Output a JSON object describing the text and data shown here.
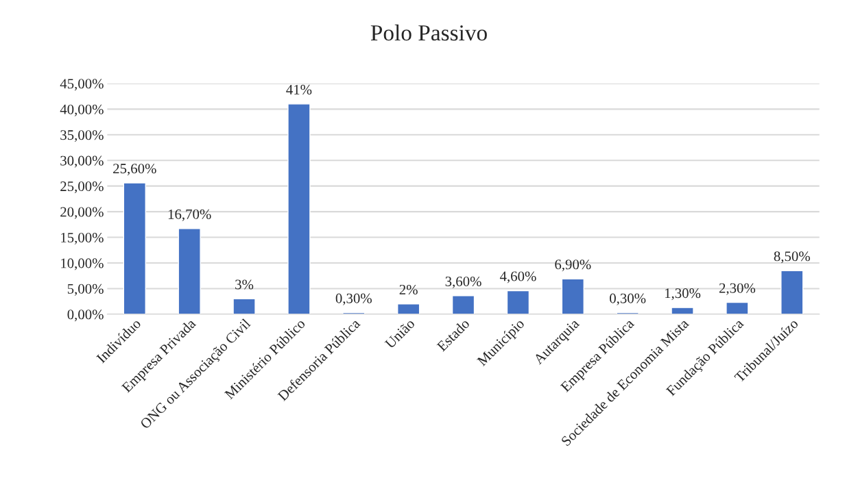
{
  "chart_data": {
    "type": "bar",
    "title": "Polo Passivo",
    "categories": [
      "Indivíduo",
      "Empresa Privada",
      "ONG ou Associação Civil",
      "Ministério Público",
      "Defensoria Pública",
      "União",
      "Estado",
      "Município",
      "Autarquia",
      "Empresa Pública",
      "Sociedade de Economia Mista",
      "Fundação Pública",
      "Tribunal/Juízo"
    ],
    "values": [
      25.6,
      16.7,
      3,
      41,
      0.3,
      2,
      3.6,
      4.6,
      6.9,
      0.3,
      1.3,
      2.3,
      8.5
    ],
    "value_labels": [
      "25,60%",
      "16,70%",
      "3%",
      "41%",
      "0,30%",
      "2%",
      "3,60%",
      "4,60%",
      "6,90%",
      "0,30%",
      "1,30%",
      "2,30%",
      "8,50%"
    ],
    "color": "#4472c4",
    "ylim": [
      0,
      45
    ],
    "yticks": [
      {
        "value": 0,
        "label": "0,00%"
      },
      {
        "value": 5,
        "label": "5,00%"
      },
      {
        "value": 10,
        "label": "10,00%"
      },
      {
        "value": 15,
        "label": "15,00%"
      },
      {
        "value": 20,
        "label": "20,00%"
      },
      {
        "value": 25,
        "label": "25,00%"
      },
      {
        "value": 30,
        "label": "30,00%"
      },
      {
        "value": 35,
        "label": "35,00%"
      },
      {
        "value": 40,
        "label": "40,00%"
      },
      {
        "value": 45,
        "label": "45,00%"
      }
    ],
    "grid": "y"
  }
}
